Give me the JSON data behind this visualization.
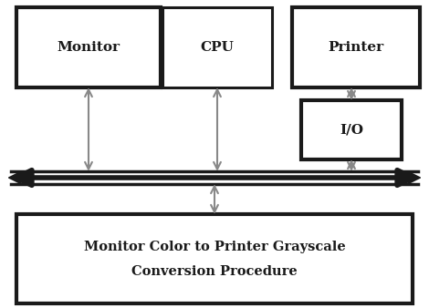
{
  "bg_color": "#ffffff",
  "box_edge_color": "#1a1a1a",
  "box_face_color": "#ffffff",
  "monitor_label": "Monitor",
  "cpu_label": "CPU",
  "printer_label": "Printer",
  "io_label": "I/O",
  "bottom_label_line1": "Monitor Color to Printer Grayscale",
  "bottom_label_line2": "Conversion Procedure",
  "label_color_normal": "#1a1a1a",
  "figsize": [
    4.7,
    3.38
  ],
  "dpi": 100,
  "xlim": [
    0,
    470
  ],
  "ylim": [
    0,
    338
  ]
}
